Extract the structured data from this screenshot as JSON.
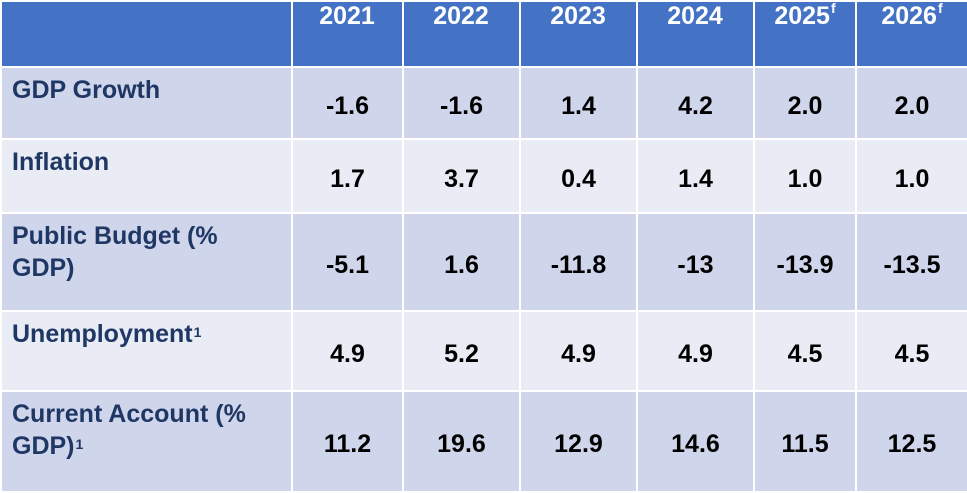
{
  "table": {
    "columns": [
      {
        "year": "2021",
        "note": ""
      },
      {
        "year": "2022",
        "note": ""
      },
      {
        "year": "2023",
        "note": ""
      },
      {
        "year": "2024",
        "note": ""
      },
      {
        "year": "2025",
        "note": "f"
      },
      {
        "year": "2026",
        "note": "f"
      }
    ],
    "rows": [
      {
        "label_line1": "GDP Growth",
        "label_line2": "",
        "note": "",
        "values": [
          "-1.6",
          "-1.6",
          "1.4",
          "4.2",
          "2.0",
          "2.0"
        ]
      },
      {
        "label_line1": "Inflation",
        "label_line2": "",
        "note": "",
        "values": [
          "1.7",
          "3.7",
          "0.4",
          "1.4",
          "1.0",
          "1.0"
        ]
      },
      {
        "label_line1": "Public Budget (%",
        "label_line2": "GDP)",
        "note": "",
        "values": [
          "-5.1",
          "1.6",
          "-11.8",
          "-13",
          "-13.9",
          "-13.5"
        ]
      },
      {
        "label_line1": "Unemployment",
        "label_line2": "",
        "note": "1",
        "values": [
          "4.9",
          "5.2",
          "4.9",
          "4.9",
          "4.5",
          "4.5"
        ]
      },
      {
        "label_line1": "Current Account (%",
        "label_line2": "GDP)",
        "note": "1",
        "values": [
          "11.2",
          "19.6",
          "12.9",
          "14.6",
          "11.5",
          "12.5"
        ]
      }
    ]
  },
  "colors": {
    "header_bg": "#4472c4",
    "row_dark": "#cfd5ea",
    "row_light": "#e9ebf5",
    "label_text": "#1f3764"
  }
}
